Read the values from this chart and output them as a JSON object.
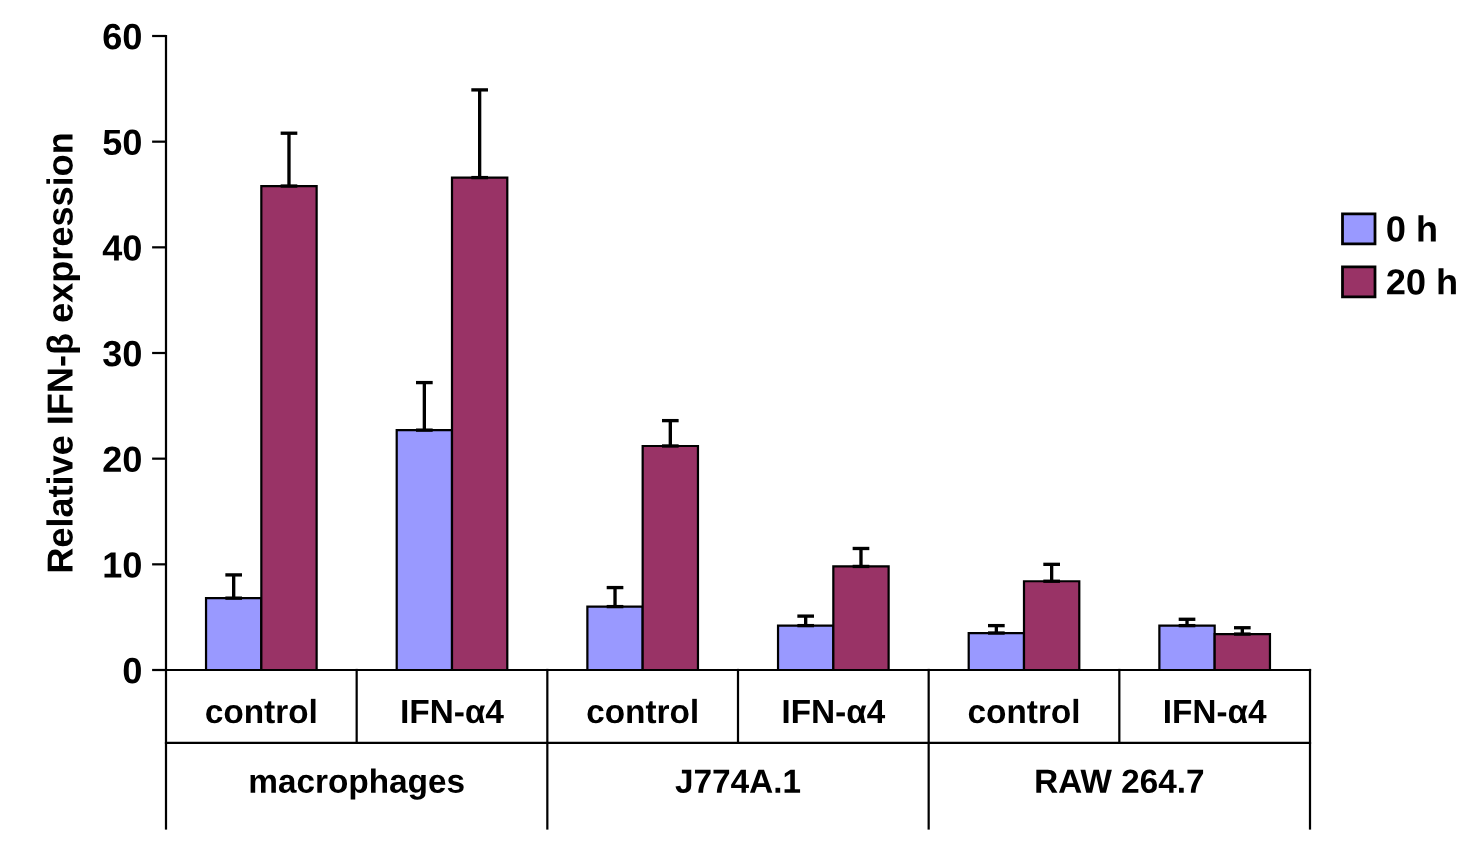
{
  "chart_data": {
    "type": "bar",
    "ylabel": "Relative IFN-β expression",
    "categories": [
      "control",
      "IFN-α4",
      "control",
      "IFN-α4",
      "control",
      "IFN-α4"
    ],
    "series": [
      {
        "name": "0 h",
        "color": "#9999ff",
        "values": [
          6.8,
          22.7,
          6.0,
          4.2,
          3.5,
          4.2
        ],
        "errors": [
          [
            6.8,
            9.0
          ],
          [
            22.7,
            27.2
          ],
          [
            6.0,
            7.8
          ],
          [
            4.2,
            5.1
          ],
          [
            3.5,
            4.2
          ],
          [
            4.2,
            4.8
          ]
        ]
      },
      {
        "name": "20 h",
        "color": "#993366",
        "values": [
          45.8,
          46.6,
          21.2,
          9.8,
          8.4,
          3.4
        ],
        "errors": [
          [
            45.8,
            50.8
          ],
          [
            46.6,
            54.9
          ],
          [
            21.2,
            23.6
          ],
          [
            9.8,
            11.5
          ],
          [
            8.4,
            10.0
          ],
          [
            3.4,
            4.0
          ]
        ]
      }
    ],
    "annotations": [
      "macrophages",
      "J774A.1",
      "RAW 264.7"
    ],
    "ylim": [
      0,
      60
    ],
    "yticks": [
      0,
      10,
      20,
      30,
      40,
      50,
      60
    ],
    "grid": false,
    "legend": "right"
  }
}
